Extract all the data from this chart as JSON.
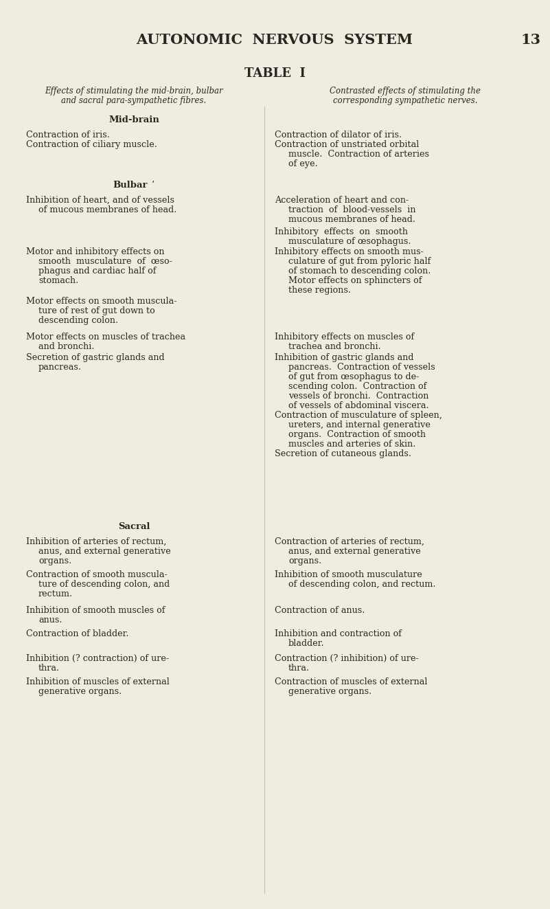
{
  "bg_color": "#f0ece0",
  "text_color": "#2a2520",
  "page_title": "AUTONOMIC  NERVOUS  SYSTEM",
  "page_number": "13",
  "table_title": "TABLE  I",
  "col1_header_line1": "Effects of stimulating the mid-brain, bulbar",
  "col1_header_line2": "and sacral para-sympathetic fibres.",
  "col2_header_line1": "Contrasted effects of stimulating the",
  "col2_header_line2": "corresponding sympathetic nerves.",
  "midbrain_heading": "Mid-brain",
  "bulbar_heading": "Bulbar",
  "sacral_heading": "Sacral",
  "lcx": 38,
  "rcx": 400,
  "lh": 14,
  "fontsize_body": 9.2,
  "fontsize_heading": 9.5,
  "fontsize_title": 15,
  "fontsize_table_title": 13,
  "fontsize_col_header": 8.5
}
